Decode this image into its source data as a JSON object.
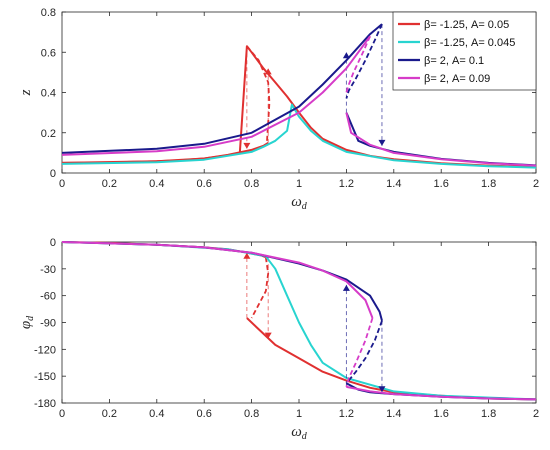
{
  "chart_data": [
    {
      "type": "line",
      "xlabel": "ω_d",
      "ylabel": "z",
      "xlim": [
        0,
        2
      ],
      "ylim": [
        0,
        0.8
      ],
      "xticks": [
        "0",
        "0.2",
        "0.4",
        "0.6",
        "0.8",
        "1",
        "1.2",
        "1.4",
        "1.6",
        "1.8",
        "2"
      ],
      "yticks": [
        "0",
        "0.2",
        "0.4",
        "0.6",
        "0.8"
      ],
      "grid": false,
      "legend": "top-right",
      "series": [
        {
          "name": "β= -1.25, A= 0.05",
          "color": "#e03030",
          "stable_upper": [
            [
              0,
              0.05
            ],
            [
              0.2,
              0.052
            ],
            [
              0.4,
              0.058
            ],
            [
              0.5,
              0.063
            ],
            [
              0.6,
              0.072
            ],
            [
              0.7,
              0.088
            ],
            [
              0.75,
              0.098
            ],
            [
              0.78,
              0.63
            ],
            [
              0.8,
              0.6
            ],
            [
              0.85,
              0.52
            ],
            [
              0.9,
              0.45
            ],
            [
              0.95,
              0.38
            ],
            [
              1.0,
              0.3
            ],
            [
              1.05,
              0.225
            ],
            [
              1.1,
              0.17
            ],
            [
              1.2,
              0.115
            ],
            [
              1.3,
              0.085
            ],
            [
              1.4,
              0.068
            ],
            [
              1.6,
              0.048
            ],
            [
              1.8,
              0.037
            ],
            [
              2.0,
              0.03
            ]
          ],
          "stable_lower": [
            [
              0,
              0.05
            ],
            [
              0.4,
              0.058
            ],
            [
              0.6,
              0.072
            ],
            [
              0.7,
              0.09
            ],
            [
              0.8,
              0.115
            ],
            [
              0.85,
              0.135
            ],
            [
              0.87,
              0.15
            ]
          ],
          "unstable": [
            [
              0.78,
              0.63
            ],
            [
              0.83,
              0.56
            ],
            [
              0.87,
              0.45
            ],
            [
              0.875,
              0.35
            ],
            [
              0.87,
              0.25
            ],
            [
              0.865,
              0.16
            ]
          ],
          "jumps": [
            {
              "x": 0.78,
              "from": 0.63,
              "to": 0.12
            },
            {
              "x": 0.87,
              "from": 0.15,
              "to": 0.52
            }
          ]
        },
        {
          "name": "β= -1.25, A= 0.045",
          "color": "#28d4d0",
          "stable_upper": [
            [
              0,
              0.045
            ],
            [
              0.4,
              0.053
            ],
            [
              0.6,
              0.066
            ],
            [
              0.8,
              0.105
            ],
            [
              0.85,
              0.13
            ],
            [
              0.9,
              0.16
            ],
            [
              0.95,
              0.21
            ],
            [
              0.97,
              0.34
            ],
            [
              1.0,
              0.28
            ],
            [
              1.05,
              0.21
            ],
            [
              1.1,
              0.16
            ],
            [
              1.2,
              0.105
            ],
            [
              1.4,
              0.063
            ],
            [
              1.6,
              0.045
            ],
            [
              1.8,
              0.034
            ],
            [
              2.0,
              0.027
            ]
          ]
        },
        {
          "name": "β= 2, A= 0.1",
          "color": "#1a1a8c",
          "stable_upper": [
            [
              0,
              0.1
            ],
            [
              0.4,
              0.12
            ],
            [
              0.6,
              0.145
            ],
            [
              0.8,
              0.2
            ],
            [
              1.0,
              0.33
            ],
            [
              1.1,
              0.44
            ],
            [
              1.2,
              0.56
            ],
            [
              1.3,
              0.69
            ],
            [
              1.35,
              0.74
            ]
          ],
          "stable_lower": [
            [
              1.2,
              0.3
            ],
            [
              1.25,
              0.16
            ],
            [
              1.3,
              0.135
            ],
            [
              1.4,
              0.105
            ],
            [
              1.6,
              0.07
            ],
            [
              1.8,
              0.05
            ],
            [
              2.0,
              0.038
            ]
          ],
          "unstable": [
            [
              1.35,
              0.74
            ],
            [
              1.32,
              0.66
            ],
            [
              1.28,
              0.56
            ],
            [
              1.24,
              0.47
            ],
            [
              1.21,
              0.41
            ],
            [
              1.2,
              0.37
            ]
          ],
          "jumps": [
            {
              "x": 1.35,
              "from": 0.74,
              "to": 0.135
            },
            {
              "x": 1.2,
              "from": 0.3,
              "to": 0.6
            }
          ]
        },
        {
          "name": "β= 2, A= 0.09",
          "color": "#d63cc8",
          "stable_upper": [
            [
              0,
              0.09
            ],
            [
              0.4,
              0.108
            ],
            [
              0.6,
              0.13
            ],
            [
              0.8,
              0.18
            ],
            [
              1.0,
              0.3
            ],
            [
              1.1,
              0.4
            ],
            [
              1.2,
              0.52
            ],
            [
              1.25,
              0.6
            ],
            [
              1.3,
              0.68
            ]
          ],
          "stable_lower": [
            [
              1.2,
              0.3
            ],
            [
              1.22,
              0.2
            ],
            [
              1.3,
              0.14
            ],
            [
              1.4,
              0.1
            ],
            [
              1.6,
              0.068
            ],
            [
              1.8,
              0.048
            ],
            [
              2.0,
              0.037
            ]
          ],
          "unstable": [
            [
              1.3,
              0.68
            ],
            [
              1.27,
              0.6
            ],
            [
              1.23,
              0.5
            ],
            [
              1.21,
              0.44
            ],
            [
              1.2,
              0.4
            ]
          ]
        }
      ]
    },
    {
      "type": "line",
      "xlabel": "ω_d",
      "ylabel": "φ_d",
      "xlim": [
        0,
        2
      ],
      "ylim": [
        -180,
        0
      ],
      "xticks": [
        "0",
        "0.2",
        "0.4",
        "0.6",
        "0.8",
        "1",
        "1.2",
        "1.4",
        "1.6",
        "1.8",
        "2"
      ],
      "yticks": [
        "0",
        "-30",
        "-60",
        "-90",
        "-120",
        "-150",
        "-180"
      ],
      "grid": false,
      "series": [
        {
          "name": "β= -1.25, A= 0.05",
          "color": "#e03030",
          "stable_upper": [
            [
              0,
              0
            ],
            [
              0.2,
              -1
            ],
            [
              0.4,
              -3
            ],
            [
              0.6,
              -6
            ],
            [
              0.7,
              -8
            ],
            [
              0.78,
              -12
            ],
            [
              0.8,
              -13
            ],
            [
              0.84,
              -15
            ],
            [
              0.86,
              -17
            ]
          ],
          "stable_lower": [
            [
              0.78,
              -85
            ],
            [
              0.82,
              -95
            ],
            [
              0.9,
              -115
            ],
            [
              1.0,
              -130
            ],
            [
              1.1,
              -145
            ],
            [
              1.2,
              -155
            ],
            [
              1.3,
              -163
            ],
            [
              1.4,
              -168
            ],
            [
              1.6,
              -172
            ],
            [
              1.8,
              -175
            ],
            [
              2.0,
              -176
            ]
          ],
          "unstable": [
            [
              0.86,
              -17
            ],
            [
              0.87,
              -35
            ],
            [
              0.86,
              -55
            ],
            [
              0.83,
              -70
            ],
            [
              0.8,
              -85
            ]
          ],
          "jumps": [
            {
              "x": 0.78,
              "from": -85,
              "to": -12
            },
            {
              "x": 0.87,
              "from": -17,
              "to": -108
            }
          ]
        },
        {
          "name": "β= -1.25, A= 0.045",
          "color": "#28d4d0",
          "stable_upper": [
            [
              0,
              0
            ],
            [
              0.4,
              -3
            ],
            [
              0.7,
              -8
            ],
            [
              0.86,
              -16
            ],
            [
              0.9,
              -30
            ],
            [
              0.95,
              -60
            ],
            [
              1.0,
              -90
            ],
            [
              1.05,
              -115
            ],
            [
              1.1,
              -135
            ],
            [
              1.2,
              -152
            ],
            [
              1.4,
              -167
            ],
            [
              1.6,
              -172
            ],
            [
              2.0,
              -176
            ]
          ]
        },
        {
          "name": "β= 2, A= 0.1",
          "color": "#1a1a8c",
          "stable_upper": [
            [
              0,
              0
            ],
            [
              0.4,
              -3
            ],
            [
              0.6,
              -6
            ],
            [
              0.8,
              -12
            ],
            [
              1.0,
              -24
            ],
            [
              1.1,
              -32
            ],
            [
              1.2,
              -42
            ],
            [
              1.3,
              -60
            ],
            [
              1.34,
              -78
            ],
            [
              1.35,
              -88
            ]
          ],
          "stable_lower": [
            [
              1.2,
              -158
            ],
            [
              1.25,
              -165
            ],
            [
              1.3,
              -168
            ],
            [
              1.4,
              -170
            ],
            [
              1.6,
              -173
            ],
            [
              1.8,
              -175
            ],
            [
              2.0,
              -176
            ]
          ],
          "unstable": [
            [
              1.35,
              -88
            ],
            [
              1.32,
              -110
            ],
            [
              1.28,
              -130
            ],
            [
              1.24,
              -145
            ],
            [
              1.2,
              -158
            ]
          ],
          "jumps": [
            {
              "x": 1.35,
              "from": -88,
              "to": -168
            },
            {
              "x": 1.2,
              "from": -160,
              "to": -48
            }
          ]
        },
        {
          "name": "β= 2, A= 0.09",
          "color": "#d63cc8",
          "stable_upper": [
            [
              0,
              0
            ],
            [
              0.4,
              -3
            ],
            [
              0.6,
              -6
            ],
            [
              0.8,
              -12
            ],
            [
              1.0,
              -23
            ],
            [
              1.1,
              -32
            ],
            [
              1.2,
              -44
            ],
            [
              1.28,
              -65
            ],
            [
              1.31,
              -85
            ]
          ],
          "stable_lower": [
            [
              1.2,
              -162
            ],
            [
              1.3,
              -167
            ],
            [
              1.4,
              -170
            ],
            [
              1.6,
              -173
            ],
            [
              1.8,
              -175
            ],
            [
              2.0,
              -176
            ]
          ],
          "unstable": [
            [
              1.31,
              -85
            ],
            [
              1.28,
              -110
            ],
            [
              1.24,
              -135
            ],
            [
              1.21,
              -152
            ],
            [
              1.2,
              -162
            ]
          ]
        }
      ]
    }
  ]
}
